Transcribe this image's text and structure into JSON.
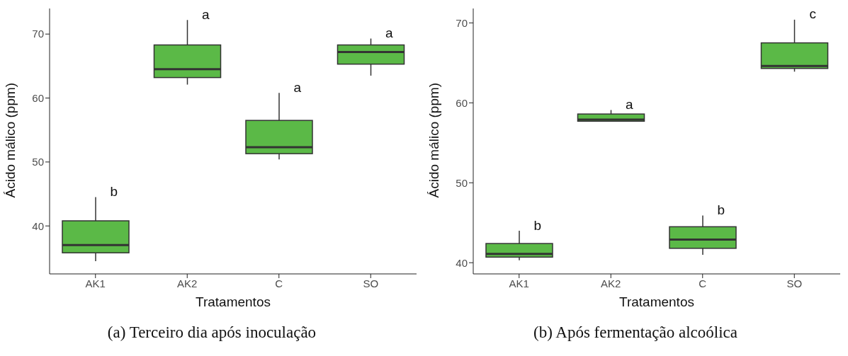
{
  "chart_data": [
    {
      "type": "box",
      "title": "(a) Terceiro dia após inoculação",
      "xlabel": "Tratamentos",
      "ylabel": "Ácido málico (ppm)",
      "categories": [
        "AK1",
        "AK2",
        "C",
        "SO"
      ],
      "ylim": [
        32.5,
        74
      ],
      "yticks": [
        40,
        50,
        60,
        70
      ],
      "color": "#5bb947",
      "boxes": [
        {
          "low": 34.5,
          "q1": 35.8,
          "median": 37.0,
          "q3": 40.8,
          "high": 44.5
        },
        {
          "low": 62.1,
          "q1": 63.2,
          "median": 64.5,
          "q3": 68.3,
          "high": 72.2
        },
        {
          "low": 50.4,
          "q1": 51.3,
          "median": 52.3,
          "q3": 56.5,
          "high": 60.8
        },
        {
          "low": 63.5,
          "q1": 65.3,
          "median": 67.2,
          "q3": 68.3,
          "high": 69.3
        }
      ],
      "annotations": [
        "b",
        "a",
        "a",
        "a"
      ]
    },
    {
      "type": "box",
      "title": "(b) Após fermentação alcoólica",
      "xlabel": "Tratamentos",
      "ylabel": "Ácido málico (ppm)",
      "categories": [
        "AK1",
        "AK2",
        "C",
        "SO"
      ],
      "ylim": [
        38.6,
        71.8
      ],
      "yticks": [
        40,
        50,
        60,
        70
      ],
      "color": "#5bb947",
      "boxes": [
        {
          "low": 40.3,
          "q1": 40.7,
          "median": 41.1,
          "q3": 42.4,
          "high": 44.0
        },
        {
          "low": 57.7,
          "q1": 57.7,
          "median": 57.9,
          "q3": 58.6,
          "high": 59.1
        },
        {
          "low": 41.0,
          "q1": 41.8,
          "median": 42.9,
          "q3": 44.5,
          "high": 45.9
        },
        {
          "low": 63.9,
          "q1": 64.3,
          "median": 64.6,
          "q3": 67.5,
          "high": 70.4
        }
      ],
      "annotations": [
        "b",
        "a",
        "b",
        "c"
      ]
    }
  ]
}
